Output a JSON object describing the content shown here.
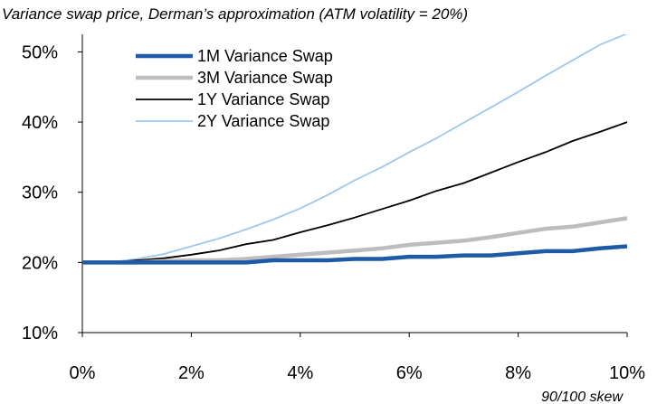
{
  "chart_data": {
    "type": "line",
    "title": "Variance swap price, Derman’s approximation (ATM volatility = 20%)",
    "xlabel": "90/100 skew",
    "ylabel": "",
    "x": [
      0,
      0.5,
      1,
      1.5,
      2,
      2.5,
      3,
      3.5,
      4,
      4.5,
      5,
      5.5,
      6,
      6.5,
      7,
      7.5,
      8,
      8.5,
      9,
      9.5,
      10
    ],
    "xlim": [
      0,
      10
    ],
    "ylim": [
      10,
      52.5
    ],
    "xticks": [
      "0%",
      "2%",
      "4%",
      "6%",
      "8%",
      "10%"
    ],
    "xtick_values": [
      0,
      2,
      4,
      6,
      8,
      10
    ],
    "yticks": [
      "10%",
      "20%",
      "30%",
      "40%",
      "50%"
    ],
    "ytick_values": [
      10,
      20,
      30,
      40,
      50
    ],
    "grid": false,
    "legend_position": "top-left",
    "series": [
      {
        "name": "1M Variance Swap",
        "color": "#1f5aa6",
        "width": 4.5,
        "values": [
          20.0,
          20.0,
          20.0,
          20.0,
          20.0,
          20.0,
          20.0,
          20.3,
          20.3,
          20.3,
          20.5,
          20.5,
          20.8,
          20.8,
          21.0,
          21.0,
          21.3,
          21.6,
          21.6,
          22.0,
          22.3
        ]
      },
      {
        "name": "3M Variance Swap",
        "color": "#bdbdbd",
        "width": 4.5,
        "values": [
          20.0,
          20.0,
          20.0,
          20.2,
          20.3,
          20.3,
          20.5,
          20.8,
          21.1,
          21.4,
          21.7,
          22.0,
          22.5,
          22.8,
          23.1,
          23.6,
          24.2,
          24.8,
          25.1,
          25.7,
          26.3
        ]
      },
      {
        "name": "1Y Variance Swap",
        "color": "#000000",
        "width": 1.8,
        "values": [
          20.0,
          20.0,
          20.3,
          20.6,
          21.1,
          21.7,
          22.6,
          23.2,
          24.3,
          25.3,
          26.4,
          27.6,
          28.8,
          30.2,
          31.3,
          32.8,
          34.3,
          35.7,
          37.3,
          38.6,
          40.0
        ]
      },
      {
        "name": "2Y Variance Swap",
        "color": "#9dc8ee",
        "width": 1.8,
        "values": [
          20.0,
          20.0,
          20.5,
          21.2,
          22.3,
          23.4,
          24.7,
          26.1,
          27.7,
          29.6,
          31.7,
          33.6,
          35.7,
          37.7,
          39.9,
          42.1,
          44.3,
          46.6,
          48.8,
          51.0,
          52.6
        ]
      }
    ]
  }
}
